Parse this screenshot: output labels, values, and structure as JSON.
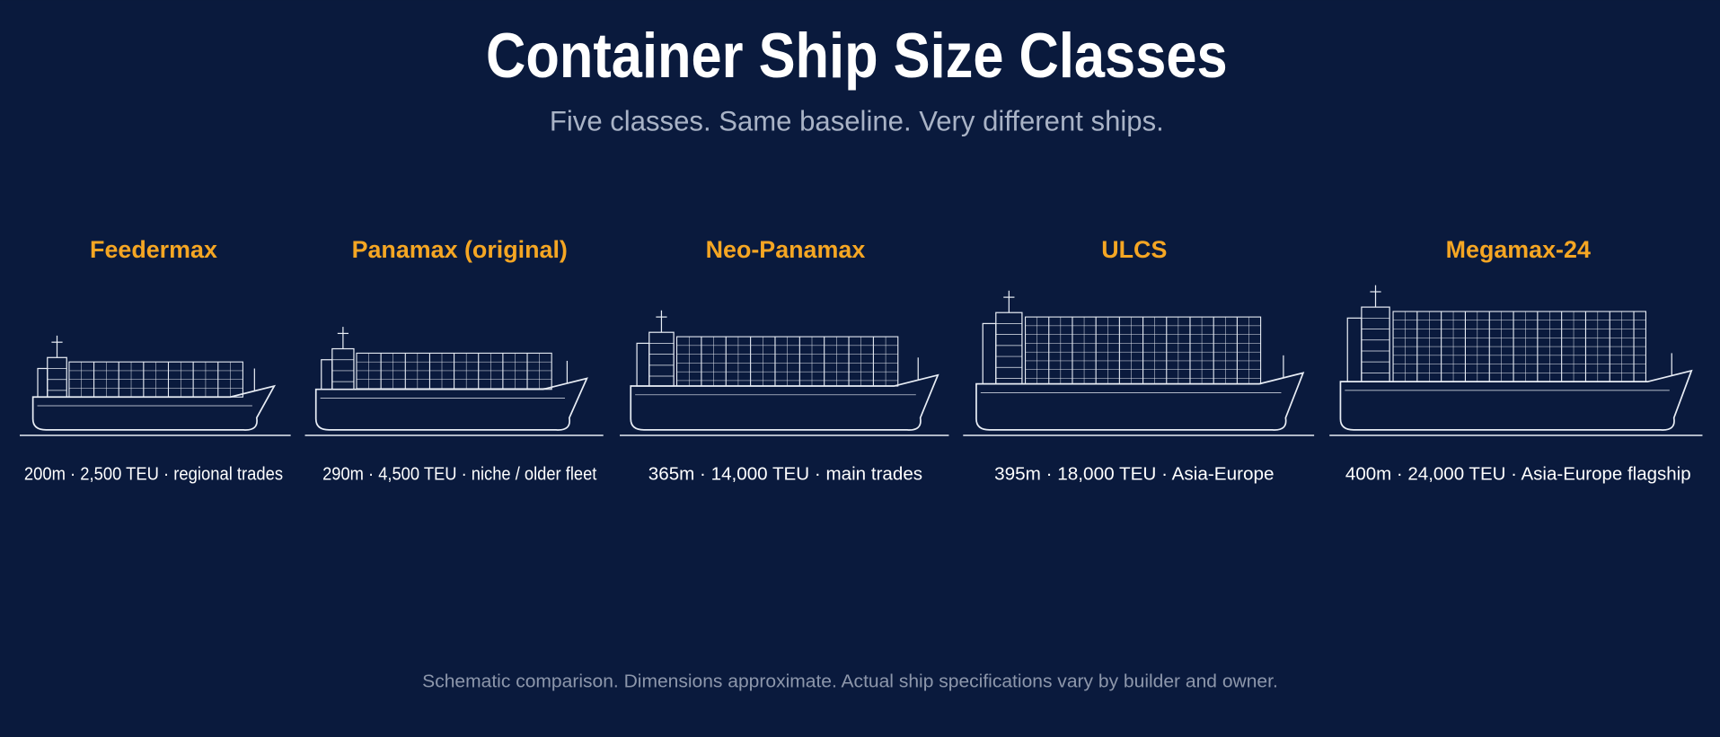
{
  "header": {
    "title": "Container Ship Size Classes",
    "subtitle": "Five classes. Same baseline. Very different ships."
  },
  "classes": [
    {
      "name": "Feedermax",
      "caption": "200m · 2,500 TEU · regional trades"
    },
    {
      "name": "Panamax (original)",
      "caption": "290m · 4,500 TEU · niche / older fleet"
    },
    {
      "name": "Neo-Panamax",
      "caption": "365m · 14,000 TEU · main trades"
    },
    {
      "name": "ULCS",
      "caption": "395m · 18,000 TEU · Asia-Europe"
    },
    {
      "name": "Megamax-24",
      "caption": "400m · 24,000 TEU · Asia-Europe flagship"
    }
  ],
  "footnote": "Schematic comparison. Dimensions approximate. Actual ship specifications vary by builder and owner."
}
